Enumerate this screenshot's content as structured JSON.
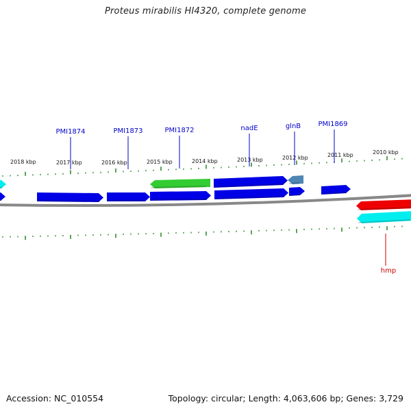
{
  "title": "Proteus mirabilis HI4320, complete genome",
  "footer": {
    "accession": "Accession: NC_010554",
    "summary": "Topology: circular; Length: 4,063,606 bp; Genes: 3,729"
  },
  "colors": {
    "backbone": "#888888",
    "tick": "#2e8b2e",
    "label_blue": "#0000cc",
    "label_red": "#cc0000"
  },
  "kbp_labels": [
    "2018 kbp",
    "2017 kbp",
    "2016 kbp",
    "2015 kbp",
    "2014 kbp",
    "2013 kbp",
    "2012 kbp",
    "2011 kbp",
    "2010 kbp"
  ],
  "gene_labels": [
    {
      "text": "PMI1874",
      "color": "#0000cc"
    },
    {
      "text": "PMI1873",
      "color": "#0000cc"
    },
    {
      "text": "PMI1872",
      "color": "#0000cc"
    },
    {
      "text": "nadE",
      "color": "#0000cc"
    },
    {
      "text": "glnB",
      "color": "#0000cc"
    },
    {
      "text": "PMI1869",
      "color": "#0000cc"
    },
    {
      "text": "hmp",
      "color": "#cc0000"
    }
  ],
  "feature_colors": {
    "cds": "#0000e6",
    "rna": "#33cc33",
    "highlight_red": "#ee0000",
    "highlight_cyan": "#00eeee",
    "steel": "#4f86b3"
  }
}
